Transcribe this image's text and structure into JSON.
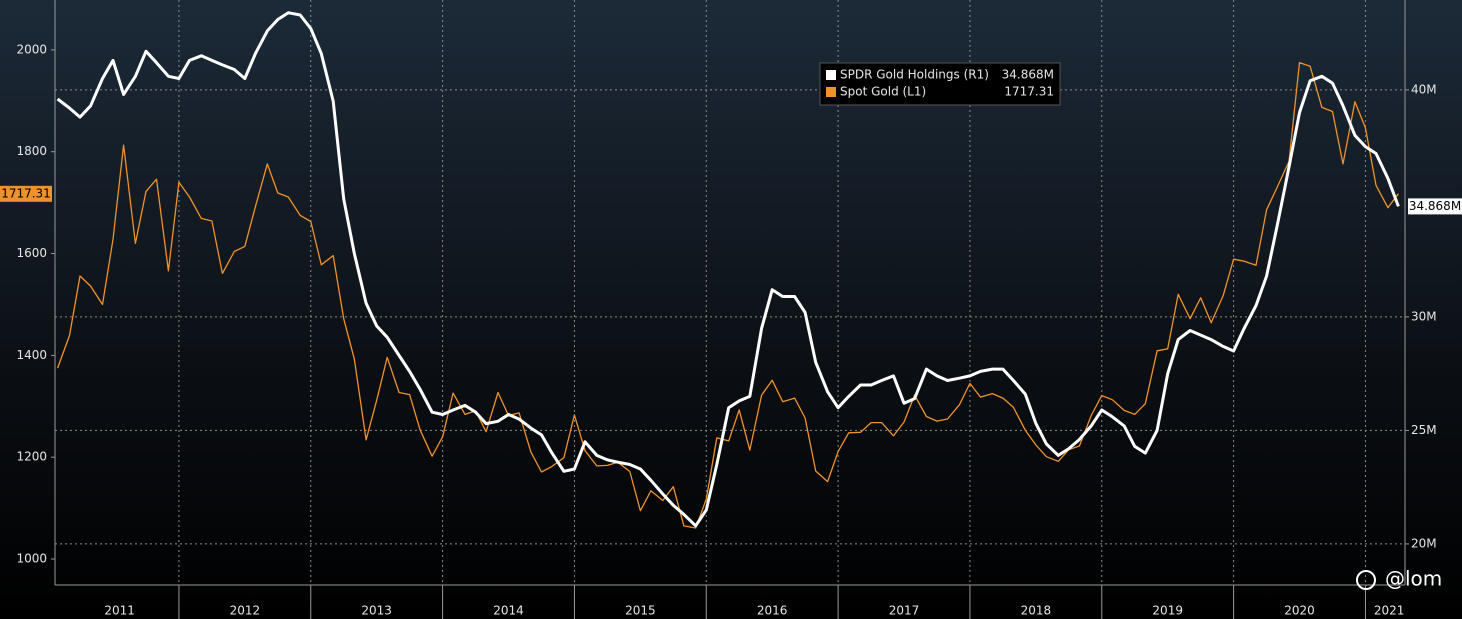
{
  "chart_data": {
    "type": "line",
    "x": [
      2011.08,
      2011.17,
      2011.25,
      2011.33,
      2011.42,
      2011.5,
      2011.58,
      2011.67,
      2011.75,
      2011.83,
      2011.92,
      2012,
      2012.08,
      2012.17,
      2012.25,
      2012.33,
      2012.42,
      2012.5,
      2012.58,
      2012.67,
      2012.75,
      2012.83,
      2012.92,
      2013,
      2013.08,
      2013.17,
      2013.25,
      2013.33,
      2013.42,
      2013.5,
      2013.58,
      2013.67,
      2013.75,
      2013.83,
      2013.92,
      2014,
      2014.08,
      2014.17,
      2014.25,
      2014.33,
      2014.42,
      2014.5,
      2014.58,
      2014.67,
      2014.75,
      2014.83,
      2014.92,
      2015,
      2015.08,
      2015.17,
      2015.25,
      2015.33,
      2015.42,
      2015.5,
      2015.58,
      2015.67,
      2015.75,
      2015.83,
      2015.92,
      2016,
      2016.08,
      2016.17,
      2016.25,
      2016.33,
      2016.42,
      2016.5,
      2016.58,
      2016.67,
      2016.75,
      2016.83,
      2016.92,
      2017,
      2017.08,
      2017.17,
      2017.25,
      2017.33,
      2017.42,
      2017.5,
      2017.58,
      2017.67,
      2017.75,
      2017.83,
      2017.92,
      2018,
      2018.08,
      2018.17,
      2018.25,
      2018.33,
      2018.42,
      2018.5,
      2018.58,
      2018.67,
      2018.75,
      2018.83,
      2018.92,
      2019,
      2019.08,
      2019.17,
      2019.25,
      2019.33,
      2019.42,
      2019.5,
      2019.58,
      2019.67,
      2019.75,
      2019.83,
      2019.92,
      2020,
      2020.08,
      2020.17,
      2020.25,
      2020.33,
      2020.42,
      2020.5,
      2020.58,
      2020.67,
      2020.75,
      2020.83,
      2020.92,
      2021,
      2021.08,
      2021.17,
      2021.25
    ],
    "series": [
      {
        "name": "SPDR Gold Holdings (R1)",
        "color": "#ffffff",
        "axis": "y2",
        "values": [
          39.6,
          39.2,
          38.8,
          39.3,
          40.5,
          41.3,
          39.8,
          40.6,
          41.7,
          41.2,
          40.6,
          40.5,
          41.3,
          41.5,
          41.3,
          41.1,
          40.9,
          40.5,
          41.6,
          42.6,
          43.1,
          43.4,
          43.3,
          42.7,
          41.6,
          39.5,
          35.2,
          32.8,
          30.6,
          29.6,
          29.1,
          28.3,
          27.6,
          26.8,
          25.8,
          25.7,
          25.9,
          26.1,
          25.8,
          25.3,
          25.4,
          25.7,
          25.5,
          25.1,
          24.8,
          24.0,
          23.2,
          23.3,
          24.5,
          23.9,
          23.7,
          23.6,
          23.5,
          23.3,
          22.8,
          22.2,
          21.7,
          21.3,
          20.8,
          21.5,
          23.5,
          26.0,
          26.3,
          26.5,
          29.5,
          31.2,
          30.9,
          30.9,
          30.2,
          28.0,
          26.7,
          26.0,
          26.5,
          27.0,
          27.0,
          27.2,
          27.4,
          26.2,
          26.4,
          27.7,
          27.4,
          27.2,
          27.3,
          27.4,
          27.6,
          27.7,
          27.7,
          27.2,
          26.6,
          25.3,
          24.4,
          23.9,
          24.2,
          24.6,
          25.2,
          25.9,
          25.6,
          25.2,
          24.3,
          24.0,
          25.0,
          27.5,
          29.0,
          29.4,
          29.2,
          29.0,
          28.7,
          28.5,
          29.5,
          30.5,
          31.8,
          34.0,
          36.6,
          39.0,
          40.4,
          40.6,
          40.3,
          39.3,
          38.0,
          37.5,
          37.2,
          36.1,
          34.868
        ],
        "value_labels": [
          null,
          null,
          null,
          null,
          null,
          null,
          null,
          null,
          null,
          null,
          null,
          null,
          null,
          null,
          null,
          null,
          null,
          null,
          null,
          null,
          null,
          null,
          null,
          null,
          null,
          null,
          null,
          null,
          null,
          null,
          null,
          null,
          null,
          null,
          null,
          null,
          null,
          null,
          null,
          null,
          null,
          null,
          null,
          null,
          null,
          null,
          null,
          null,
          null,
          null,
          null,
          null,
          null,
          null,
          null,
          null,
          null,
          null,
          null,
          null,
          null,
          null,
          null,
          null,
          null,
          null,
          null,
          null,
          null,
          null,
          null,
          null,
          null,
          null,
          null,
          null,
          null,
          null,
          null,
          null,
          null,
          null,
          null,
          null,
          null,
          null,
          null,
          null,
          null,
          null,
          null,
          null,
          null,
          null,
          null,
          null,
          null,
          null,
          null,
          null,
          null,
          null,
          null,
          null,
          null,
          null,
          null,
          null,
          null,
          null,
          null,
          null,
          null,
          null,
          null,
          null,
          null,
          null,
          null,
          null,
          null,
          null,
          "34.868M"
        ]
      },
      {
        "name": "Spot Gold (L1)",
        "color": "#f0922b",
        "axis": "y",
        "values": [
          1375,
          1439,
          1556,
          1536,
          1500,
          1628,
          1813,
          1620,
          1722,
          1746,
          1566,
          1740,
          1711,
          1669,
          1664,
          1561,
          1604,
          1614,
          1692,
          1776,
          1719,
          1711,
          1675,
          1663,
          1578,
          1596,
          1472,
          1393,
          1234,
          1312,
          1396,
          1327,
          1323,
          1253,
          1202,
          1240,
          1326,
          1284,
          1291,
          1250,
          1327,
          1282,
          1287,
          1210,
          1171,
          1182,
          1199,
          1283,
          1213,
          1183,
          1184,
          1190,
          1172,
          1095,
          1134,
          1115,
          1142,
          1065,
          1061,
          1118,
          1238,
          1232,
          1293,
          1214,
          1322,
          1351,
          1309,
          1316,
          1277,
          1173,
          1152,
          1211,
          1248,
          1249,
          1268,
          1268,
          1242,
          1269,
          1322,
          1280,
          1271,
          1275,
          1303,
          1345,
          1318,
          1325,
          1316,
          1298,
          1253,
          1224,
          1201,
          1192,
          1215,
          1222,
          1282,
          1321,
          1313,
          1292,
          1284,
          1305,
          1409,
          1413,
          1520,
          1472,
          1513,
          1464,
          1517,
          1589,
          1585,
          1577,
          1686,
          1730,
          1781,
          1975,
          1968,
          1887,
          1879,
          1776,
          1898,
          1847,
          1734,
          1690,
          1717.31
        ]
      }
    ],
    "xlim": [
      2011.06,
      2021.3
    ],
    "xticks": [
      {
        "value": 2011.55,
        "label": "2011"
      },
      {
        "value": 2012.5,
        "label": "2012"
      },
      {
        "value": 2013.5,
        "label": "2013"
      },
      {
        "value": 2014.5,
        "label": "2014"
      },
      {
        "value": 2015.5,
        "label": "2015"
      },
      {
        "value": 2016.5,
        "label": "2016"
      },
      {
        "value": 2017.5,
        "label": "2017"
      },
      {
        "value": 2018.5,
        "label": "2018"
      },
      {
        "value": 2019.5,
        "label": "2019"
      },
      {
        "value": 2020.5,
        "label": "2020"
      },
      {
        "value": 2021.18,
        "label": "2021"
      }
    ],
    "ylim": [
      949,
      2098
    ],
    "yticks": [
      1000,
      1200,
      1400,
      1600,
      1800,
      2000
    ],
    "y2lim": [
      18.19,
      43.96
    ],
    "y2ticks": [
      {
        "value": 20,
        "label": "20M"
      },
      {
        "value": 25,
        "label": "25M"
      },
      {
        "value": 30,
        "label": "30M"
      },
      {
        "value": 40,
        "label": "40M"
      }
    ],
    "grid": true,
    "legend": "top-right",
    "watermark": "@lom"
  }
}
